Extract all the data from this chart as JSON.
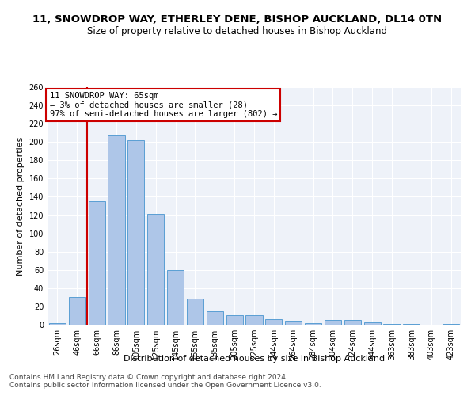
{
  "title_line1": "11, SNOWDROP WAY, ETHERLEY DENE, BISHOP AUCKLAND, DL14 0TN",
  "title_line2": "Size of property relative to detached houses in Bishop Auckland",
  "xlabel": "Distribution of detached houses by size in Bishop Auckland",
  "ylabel": "Number of detached properties",
  "categories": [
    "26sqm",
    "46sqm",
    "66sqm",
    "86sqm",
    "105sqm",
    "125sqm",
    "145sqm",
    "165sqm",
    "185sqm",
    "205sqm",
    "225sqm",
    "244sqm",
    "264sqm",
    "284sqm",
    "304sqm",
    "324sqm",
    "344sqm",
    "363sqm",
    "383sqm",
    "403sqm",
    "423sqm"
  ],
  "values": [
    2,
    30,
    135,
    207,
    202,
    121,
    60,
    29,
    15,
    10,
    10,
    6,
    4,
    2,
    5,
    5,
    3,
    1,
    1,
    0,
    1
  ],
  "bar_color": "#aec6e8",
  "bar_edge_color": "#5a9fd4",
  "bar_linewidth": 0.7,
  "red_line_x": 1.5,
  "annotation_text": "11 SNOWDROP WAY: 65sqm\n← 3% of detached houses are smaller (28)\n97% of semi-detached houses are larger (802) →",
  "annotation_box_color": "#ffffff",
  "annotation_box_edge_color": "#cc0000",
  "ylim": [
    0,
    260
  ],
  "yticks": [
    0,
    20,
    40,
    60,
    80,
    100,
    120,
    140,
    160,
    180,
    200,
    220,
    240,
    260
  ],
  "background_color": "#eef2f9",
  "grid_color": "#ffffff",
  "footer_line1": "Contains HM Land Registry data © Crown copyright and database right 2024.",
  "footer_line2": "Contains public sector information licensed under the Open Government Licence v3.0.",
  "title1_fontsize": 9.5,
  "title2_fontsize": 8.5,
  "xlabel_fontsize": 8,
  "ylabel_fontsize": 8,
  "tick_fontsize": 7,
  "footer_fontsize": 6.5,
  "annotation_fontsize": 7.5
}
